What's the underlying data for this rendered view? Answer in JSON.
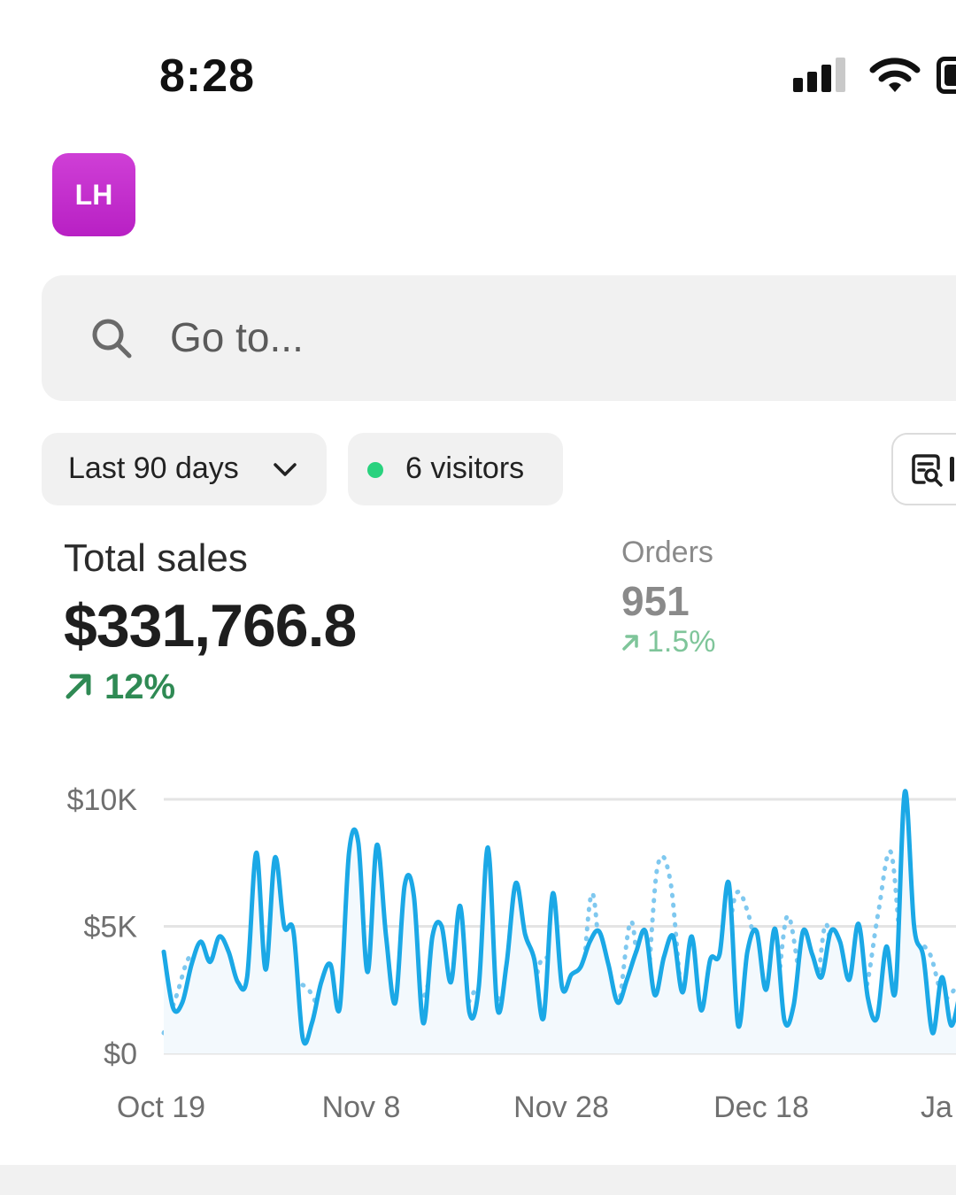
{
  "status_bar": {
    "time": "8:28"
  },
  "avatar": {
    "initials": "LH"
  },
  "search": {
    "placeholder": "Go to..."
  },
  "filters": {
    "date_range": "Last 90 days",
    "visitors": "6 visitors"
  },
  "metrics": {
    "total_sales": {
      "label": "Total sales",
      "value": "$331,766.8",
      "change": "12%"
    },
    "orders": {
      "label": "Orders",
      "value": "951",
      "change": "1.5%"
    }
  },
  "colors": {
    "accent": "#1ba8e6",
    "positive": "#2f8a54",
    "live_dot": "#29d27e",
    "avatar": "#c22fcd"
  },
  "chart_data": {
    "type": "line",
    "y_ticks": [
      "$10K",
      "$5K",
      "$0"
    ],
    "x_ticks": [
      "Oct 19",
      "Nov 8",
      "Nov 28",
      "Dec 18",
      "Ja"
    ],
    "ylim": [
      0,
      10000
    ],
    "grid": true,
    "series": [
      {
        "style": "solid",
        "color": "#1ba8e6",
        "values": [
          4000,
          1800,
          2000,
          3500,
          4400,
          3600,
          4600,
          4000,
          2800,
          3000,
          7900,
          3300,
          7700,
          5000,
          4800,
          600,
          1200,
          2800,
          3500,
          1800,
          7900,
          8300,
          3200,
          8200,
          4600,
          2000,
          6600,
          6200,
          1200,
          4600,
          5000,
          2800,
          5800,
          1600,
          2600,
          8100,
          1800,
          3500,
          6700,
          4700,
          3700,
          1400,
          6300,
          2600,
          3100,
          3400,
          4400,
          4800,
          3500,
          2000,
          2900,
          4000,
          4800,
          2300,
          3800,
          4600,
          2400,
          4600,
          1700,
          3700,
          3900,
          6700,
          1100,
          4000,
          4800,
          2500,
          4900,
          1300,
          1900,
          4800,
          3900,
          3000,
          4800,
          4400,
          2900,
          5100,
          2200,
          1400,
          4200,
          2500,
          10300,
          5000,
          3800,
          800,
          3000,
          1100,
          2500
        ]
      },
      {
        "style": "dotted",
        "color": "#7fc8ef",
        "values": [
          800,
          2300,
          3800,
          3200,
          4000,
          2600,
          2000,
          1100,
          1900,
          1600,
          2600,
          2600,
          1800,
          1700,
          1000,
          1800,
          1400,
          2400,
          1600,
          1800,
          2200,
          3500,
          1500,
          1600,
          2500,
          2800,
          2100,
          2900,
          1400,
          3600,
          3500,
          2200,
          1700,
          6300,
          1200,
          1800,
          5200,
          1600,
          7300,
          6800,
          1800,
          1600,
          2300,
          2700,
          6200,
          5500,
          3000,
          1700,
          5400,
          3000,
          1300,
          5100,
          1000,
          2500,
          2400,
          5500,
          7900,
          3000,
          4200,
          3900,
          2200,
          2600
        ]
      }
    ]
  }
}
